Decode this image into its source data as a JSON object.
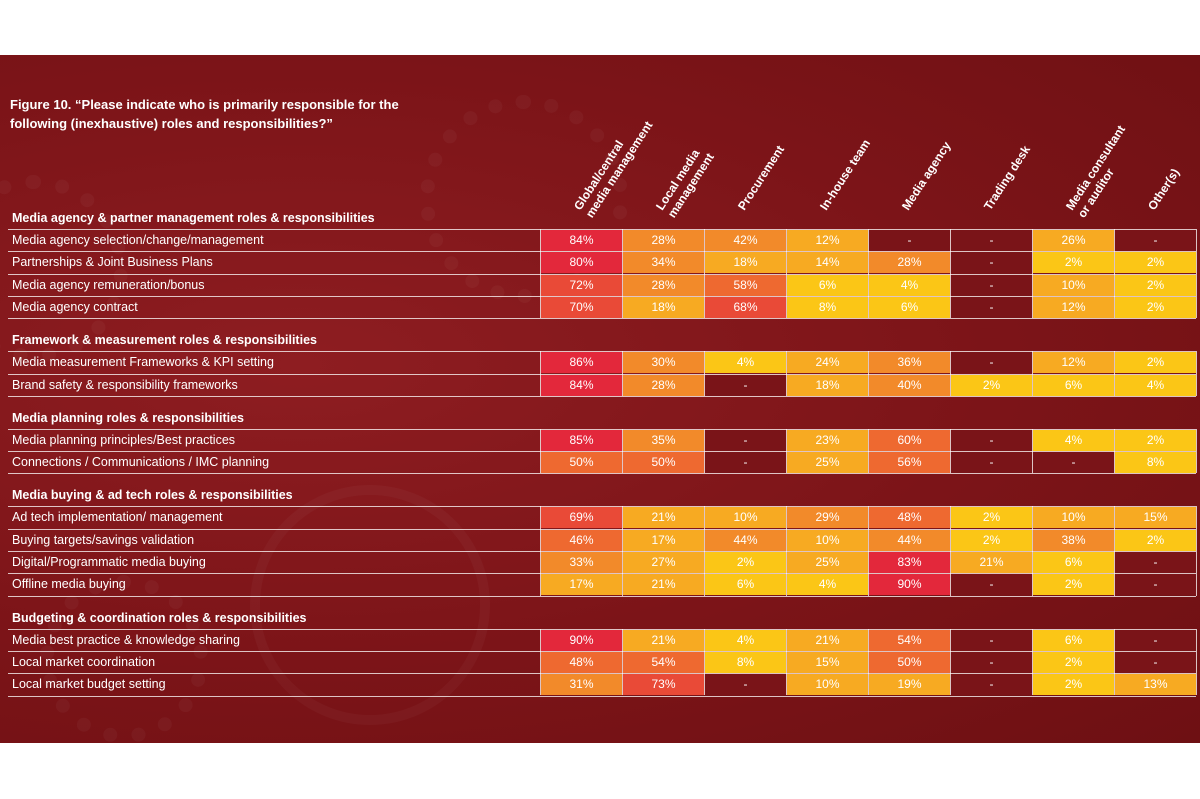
{
  "chart_data": {
    "type": "table",
    "title": "Figure 10. “Please indicate who is primarily responsible for the following (inexhaustive) roles and responsibilities?”",
    "columns": [
      [
        "Global/central",
        "media management"
      ],
      [
        "Local media",
        "management"
      ],
      [
        "Procurement"
      ],
      [
        "In-house team"
      ],
      [
        "Media agency"
      ],
      [
        "Trading desk"
      ],
      [
        "Media consultant",
        "or auditor"
      ],
      [
        "Other(s)"
      ]
    ],
    "colors": {
      "very_high": "#e3283b",
      "high": "#e94a37",
      "mid_high": "#ee6930",
      "mid": "#f28a2a",
      "mid_low": "#f7aa22",
      "low": "#fbc616",
      "none": "#7a1418"
    },
    "sections": [
      {
        "title": "Media agency & partner management roles & responsibilities",
        "rows": [
          {
            "label": "Media agency selection/change/management",
            "values": [
              "84%",
              "28%",
              "42%",
              "12%",
              "-",
              "-",
              "26%",
              "-"
            ]
          },
          {
            "label": "Partnerships & Joint Business Plans",
            "values": [
              "80%",
              "34%",
              "18%",
              "14%",
              "28%",
              "-",
              "2%",
              "2%"
            ]
          },
          {
            "label": "Media agency remuneration/bonus",
            "values": [
              "72%",
              "28%",
              "58%",
              "6%",
              "4%",
              "-",
              "10%",
              "2%"
            ]
          },
          {
            "label": "Media agency contract",
            "values": [
              "70%",
              "18%",
              "68%",
              "8%",
              "6%",
              "-",
              "12%",
              "2%"
            ]
          }
        ]
      },
      {
        "title": "Framework & measurement roles & responsibilities",
        "rows": [
          {
            "label": "Media measurement Frameworks & KPI setting",
            "values": [
              "86%",
              "30%",
              "4%",
              "24%",
              "36%",
              "-",
              "12%",
              "2%"
            ]
          },
          {
            "label": "Brand safety & responsibility frameworks",
            "values": [
              "84%",
              "28%",
              "-",
              "18%",
              "40%",
              "2%",
              "6%",
              "4%"
            ]
          }
        ]
      },
      {
        "title": "Media planning roles & responsibilities",
        "rows": [
          {
            "label": "Media planning principles/Best practices",
            "values": [
              "85%",
              "35%",
              "-",
              "23%",
              "60%",
              "-",
              "4%",
              "2%"
            ]
          },
          {
            "label": "Connections / Communications / IMC planning",
            "values": [
              "50%",
              "50%",
              "-",
              "25%",
              "56%",
              "-",
              "-",
              "8%"
            ]
          }
        ]
      },
      {
        "title": "Media buying & ad tech roles & responsibilities",
        "rows": [
          {
            "label": "Ad tech implementation/ management",
            "values": [
              "69%",
              "21%",
              "10%",
              "29%",
              "48%",
              "2%",
              "10%",
              "15%"
            ]
          },
          {
            "label": "Buying targets/savings validation",
            "values": [
              "46%",
              "17%",
              "44%",
              "10%",
              "44%",
              "2%",
              "38%",
              "2%"
            ]
          },
          {
            "label": "Digital/Programmatic media buying",
            "values": [
              "33%",
              "27%",
              "2%",
              "25%",
              "83%",
              "21%",
              "6%",
              "-"
            ]
          },
          {
            "label": "Offline media buying",
            "values": [
              "17%",
              "21%",
              "6%",
              "4%",
              "90%",
              "-",
              "2%",
              "-"
            ]
          }
        ]
      },
      {
        "title": "Budgeting & coordination roles & responsibilities",
        "rows": [
          {
            "label": "Media best practice & knowledge sharing",
            "values": [
              "90%",
              "21%",
              "4%",
              "21%",
              "54%",
              "-",
              "6%",
              "-"
            ]
          },
          {
            "label": "Local market coordination",
            "values": [
              "48%",
              "54%",
              "8%",
              "15%",
              "50%",
              "-",
              "2%",
              "-"
            ]
          },
          {
            "label": "Local market budget setting",
            "values": [
              "31%",
              "73%",
              "-",
              "10%",
              "19%",
              "-",
              "2%",
              "13%"
            ]
          }
        ]
      }
    ]
  }
}
